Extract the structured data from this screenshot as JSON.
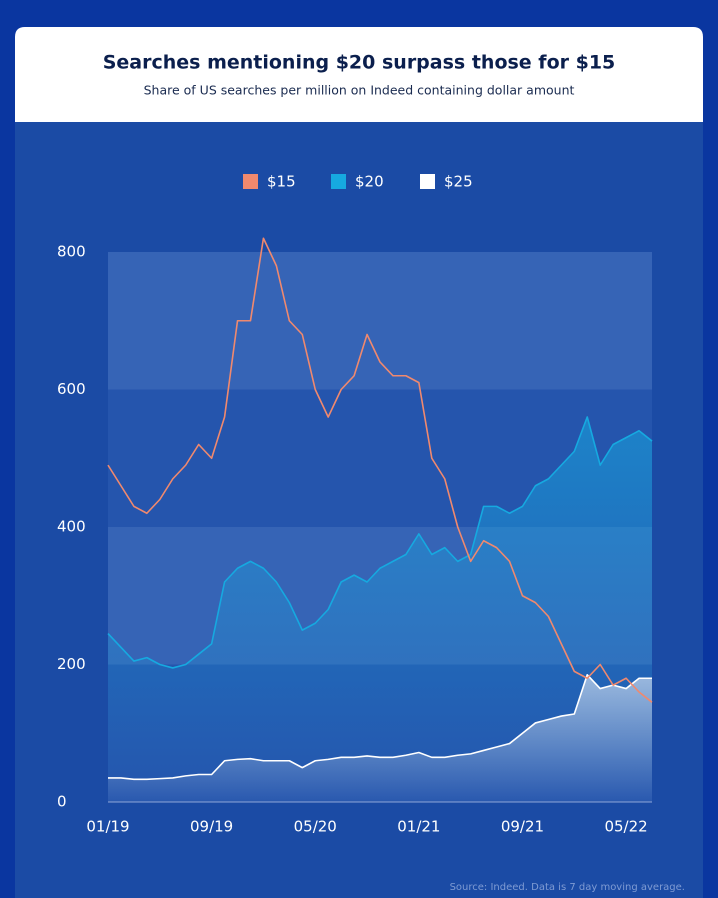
{
  "chart_data": {
    "type": "line",
    "title": "Searches mentioning $20 surpass those for $15",
    "subtitle": "Share of US searches per million on Indeed containing dollar amount",
    "source": "Source: Indeed. Data is 7 day moving average.",
    "categories": [
      "01/19",
      null,
      null,
      null,
      null,
      null,
      null,
      null,
      "09/19",
      null,
      null,
      null,
      null,
      null,
      null,
      null,
      "05/20",
      null,
      null,
      null,
      null,
      null,
      null,
      null,
      "01/21",
      null,
      null,
      null,
      null,
      null,
      null,
      null,
      "09/21",
      null,
      null,
      null,
      null,
      null,
      null,
      null,
      "05/22",
      null,
      null
    ],
    "series": [
      {
        "name": "$15",
        "color": "#f0896e",
        "values": [
          490,
          460,
          430,
          420,
          440,
          470,
          490,
          520,
          500,
          560,
          700,
          700,
          820,
          780,
          700,
          680,
          600,
          560,
          600,
          620,
          680,
          640,
          620,
          620,
          610,
          500,
          470,
          400,
          350,
          380,
          370,
          350,
          300,
          290,
          270,
          230,
          190,
          180,
          200,
          170,
          180,
          160,
          145
        ]
      },
      {
        "name": "$20",
        "color": "#16a9e0",
        "values": [
          245,
          225,
          205,
          210,
          200,
          195,
          200,
          215,
          230,
          320,
          340,
          350,
          340,
          320,
          290,
          250,
          260,
          280,
          320,
          330,
          320,
          340,
          350,
          360,
          390,
          360,
          370,
          350,
          360,
          430,
          430,
          420,
          430,
          460,
          470,
          490,
          510,
          560,
          490,
          520,
          530,
          540,
          525
        ]
      },
      {
        "name": "$25",
        "color": "#ffffff",
        "values": [
          35,
          35,
          33,
          33,
          34,
          35,
          38,
          40,
          40,
          60,
          62,
          63,
          60,
          60,
          60,
          50,
          60,
          62,
          65,
          65,
          67,
          65,
          65,
          68,
          72,
          65,
          65,
          68,
          70,
          75,
          80,
          85,
          100,
          115,
          120,
          125,
          128,
          185,
          165,
          170,
          165,
          180,
          180
        ]
      }
    ],
    "ylim": [
      0,
      800
    ],
    "yticks": [
      0,
      200,
      400,
      600,
      800
    ],
    "grid": true
  }
}
